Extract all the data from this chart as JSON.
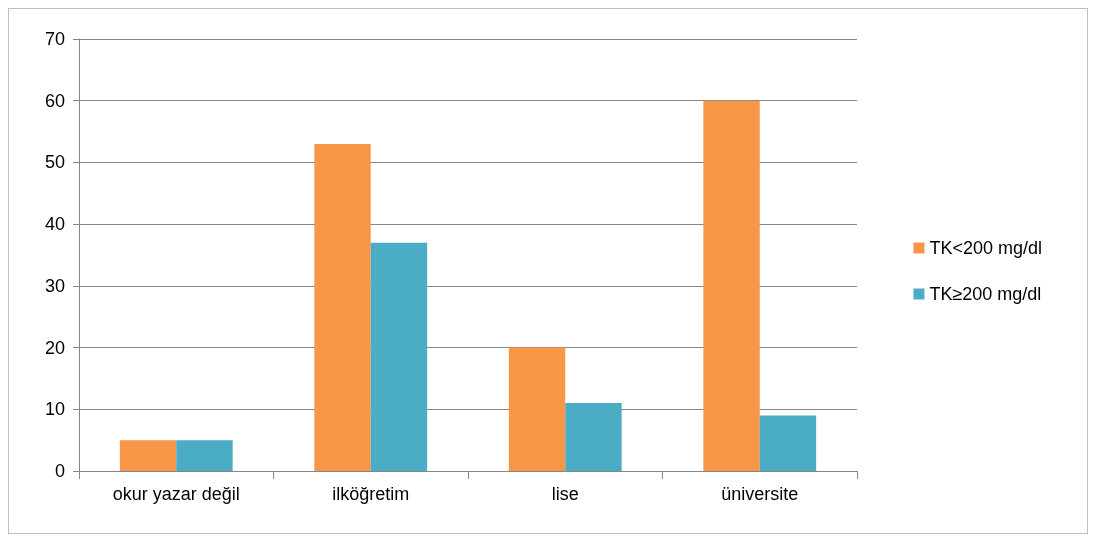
{
  "chart_data": {
    "type": "bar",
    "categories": [
      "okur yazar değil",
      "ilköğretim",
      "lise",
      "üniversite"
    ],
    "series": [
      {
        "name": "TK<200 mg/dl",
        "color": "#f79646",
        "values": [
          5,
          53,
          20,
          60
        ]
      },
      {
        "name": "TK≥200 mg/dl",
        "color": "#4bacc6",
        "values": [
          5,
          37,
          11,
          9
        ]
      }
    ],
    "ylim": [
      0,
      70
    ],
    "yticks": [
      0,
      10,
      20,
      30,
      40,
      50,
      60,
      70
    ],
    "grid": "y",
    "legend": "right"
  }
}
